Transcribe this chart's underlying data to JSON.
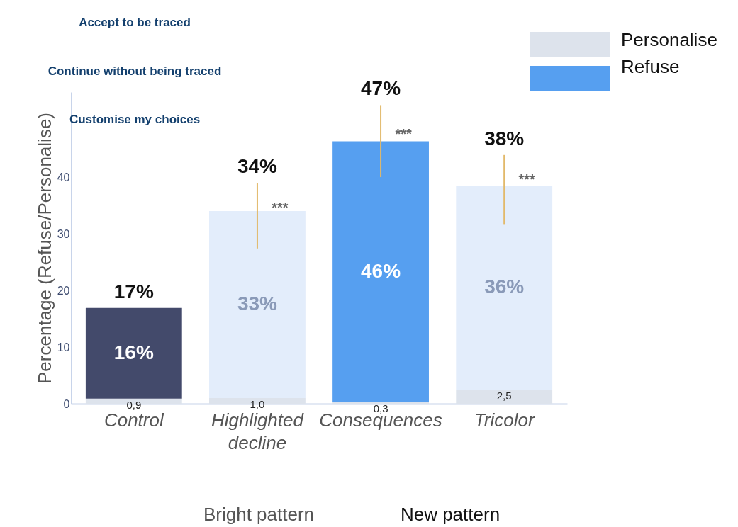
{
  "chart_data": {
    "type": "bar",
    "stacked": true,
    "ylabel": "Percentage (Refuse/Personalise)",
    "categories": [
      "Control",
      "Highlighted decline",
      "Consequences",
      "Tricolor"
    ],
    "series": [
      {
        "name": "Personalise",
        "color": "#dde3ec",
        "values": [
          0.9,
          1.0,
          0.3,
          2.5
        ],
        "value_labels": [
          "0,9",
          "1,0",
          "0,3",
          "2,5"
        ]
      },
      {
        "name": "Refuse",
        "color": "#569ff0",
        "colors": [
          "#434a6b",
          "#e3edfb",
          "#569ff0",
          "#e3edfb"
        ],
        "values": [
          16,
          33,
          46,
          36
        ],
        "value_labels": [
          "16%",
          "33%",
          "46%",
          "36%"
        ],
        "errors": [
          null,
          [
            27.4,
            39.0
          ],
          [
            40.0,
            52.7
          ],
          [
            31.7,
            43.9
          ]
        ]
      }
    ],
    "totals": [
      "17%",
      "34%",
      "47%",
      "38%"
    ],
    "ylim": [
      0,
      55
    ],
    "yticks": [
      0,
      10,
      20,
      30,
      40
    ],
    "legend": "top right",
    "annotations": [
      "Accept to be traced",
      "Continue without being traced",
      "Customise my choices",
      "Bright pattern",
      "New pattern",
      {
        "text": "***",
        "x": "Highlighted decline",
        "y": 34.5
      },
      {
        "text": "***",
        "x": "Consequences",
        "y": 47.5
      },
      {
        "text": "***",
        "x": "Tricolor",
        "y": 39.5
      }
    ]
  }
}
